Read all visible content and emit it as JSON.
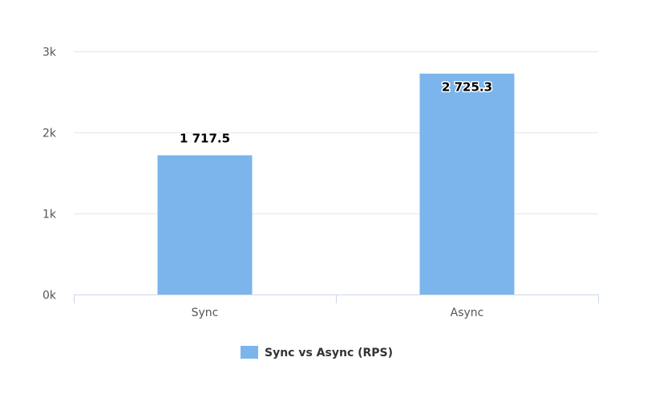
{
  "chart_data": {
    "type": "bar",
    "categories": [
      "Sync",
      "Async"
    ],
    "series": [
      {
        "name": "Sync vs Async (RPS)",
        "values": [
          1717.5,
          2725.3
        ],
        "data_labels": [
          "1 717.5",
          "2 725.3"
        ],
        "color": "#7cb5ec"
      }
    ],
    "yticks": [
      {
        "value": 0,
        "label": "0k"
      },
      {
        "value": 1000,
        "label": "1k"
      },
      {
        "value": 2000,
        "label": "2k"
      },
      {
        "value": 3000,
        "label": "3k"
      }
    ],
    "ylim": [
      0,
      3000
    ],
    "title": "",
    "xlabel": "",
    "ylabel": "",
    "grid": true,
    "legend_position": "bottom-center",
    "colors": {
      "grid": "#e6e6e6",
      "axis": "#ccd6eb",
      "bar": "#7cb5ec"
    }
  }
}
